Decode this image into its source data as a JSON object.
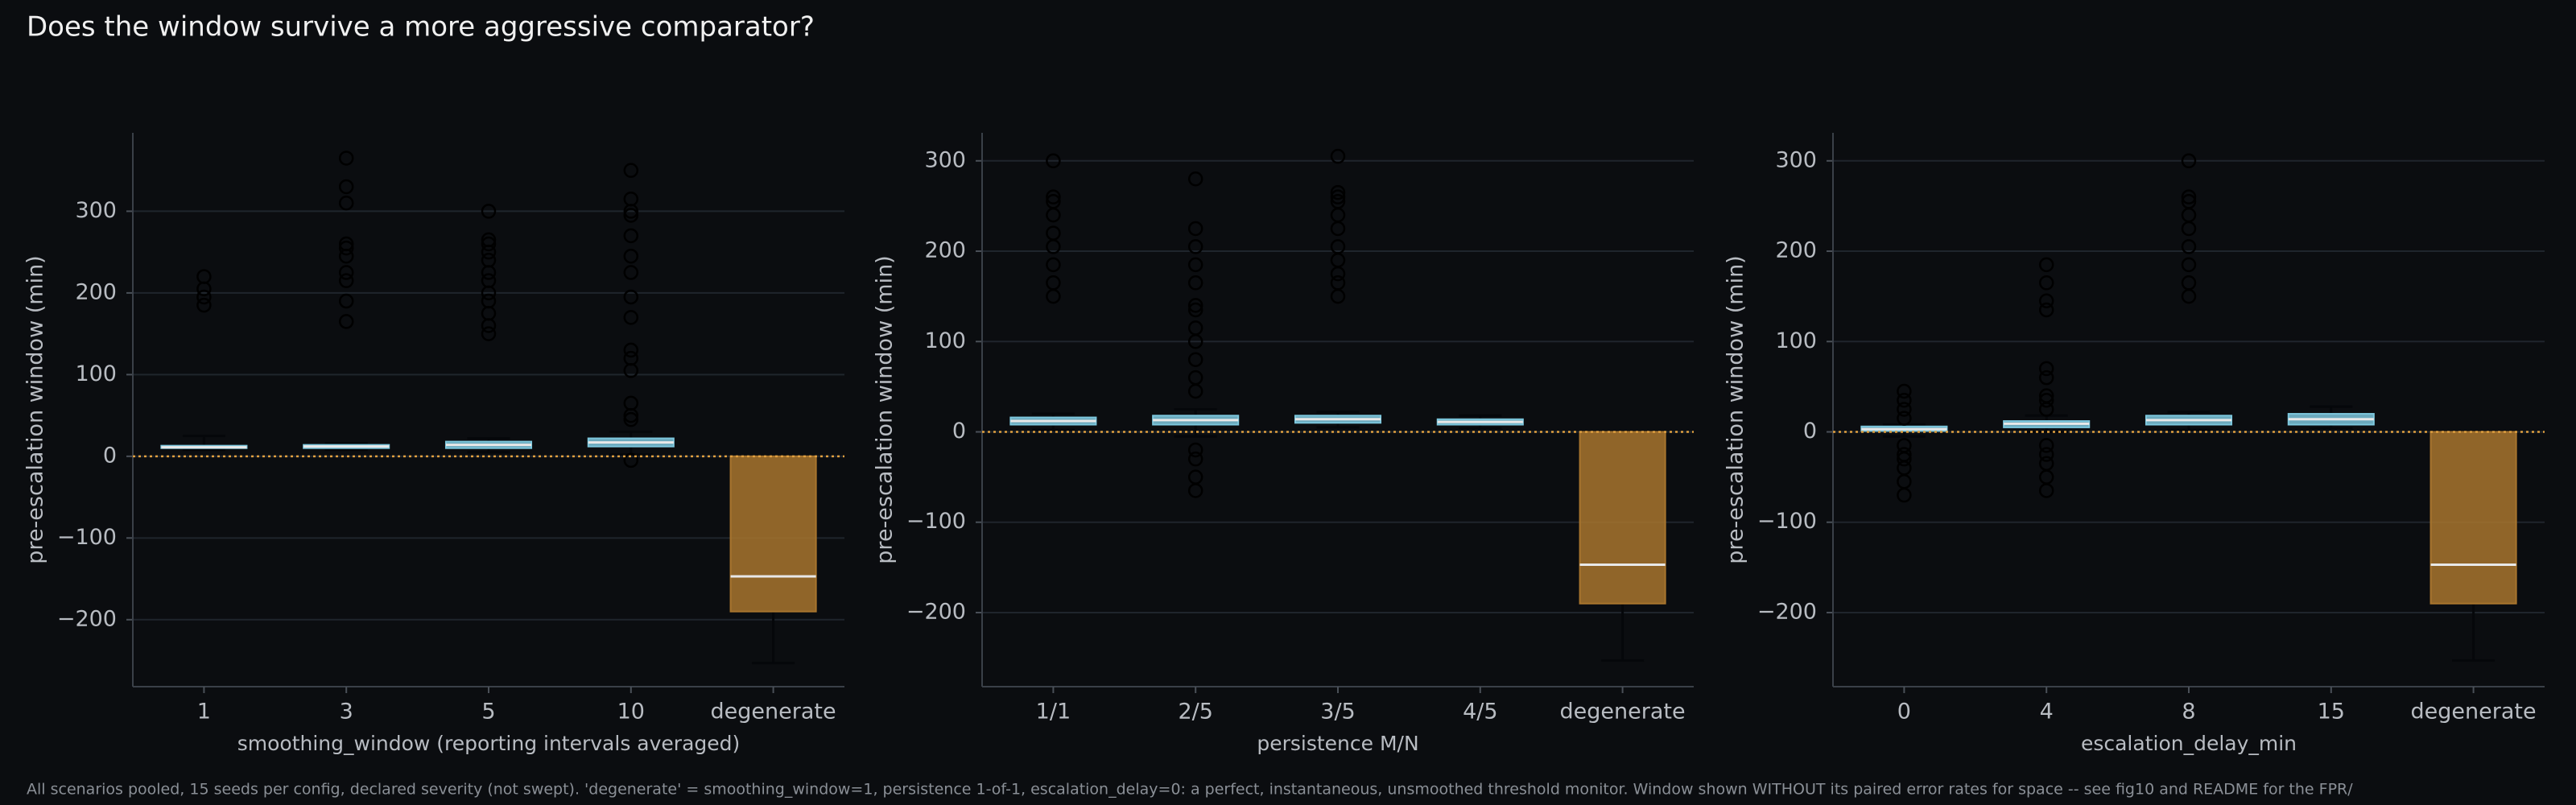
{
  "title": "Does the window survive a more aggressive comparator?",
  "footnote": "All scenarios pooled, 15 seeds per config, declared severity (not swept). 'degenerate' = smoothing_window=1, persistence 1-of-1, escalation_delay=0: a perfect, instantaneous, unsmoothed threshold monitor. Window shown WITHOUT its paired error rates for space -- see fig10 and README for the FPR/",
  "chart_data": [
    {
      "type": "box",
      "xlabel": "smoothing_window (reporting intervals averaged)",
      "ylabel": "pre-escalation window (min)",
      "categories": [
        "1",
        "3",
        "5",
        "10",
        "degenerate"
      ],
      "box_colors": [
        "#7cc6dc",
        "#7cc6dc",
        "#7cc6dc",
        "#7cc6dc",
        "#a8752e"
      ],
      "median_color": "#e8e8e8",
      "reference_line": 0,
      "reference_color": "#e0a040",
      "ylim": [
        -282,
        396
      ],
      "yticks": [
        {
          "value": -200,
          "label": "−200"
        },
        {
          "value": -100,
          "label": "−100"
        },
        0,
        100,
        200,
        300
      ],
      "grid": true,
      "boxes": [
        {
          "q1": 10,
          "median": 11,
          "q3": 13,
          "whislo": 8,
          "whishi": 25,
          "fliers": [
            185,
            195,
            205,
            220
          ]
        },
        {
          "q1": 10,
          "median": 12,
          "q3": 14,
          "whislo": 8,
          "whishi": 16,
          "fliers": [
            165,
            190,
            215,
            225,
            245,
            255,
            260,
            310,
            330,
            365
          ]
        },
        {
          "q1": 10,
          "median": 14,
          "q3": 18,
          "whislo": 5,
          "whishi": 22,
          "fliers": [
            150,
            160,
            175,
            190,
            200,
            215,
            225,
            240,
            250,
            260,
            265,
            300
          ]
        },
        {
          "q1": 12,
          "median": 17,
          "q3": 22,
          "whislo": 2,
          "whishi": 30,
          "fliers": [
            -5,
            45,
            50,
            65,
            105,
            120,
            130,
            170,
            195,
            225,
            245,
            270,
            295,
            300,
            315,
            350
          ]
        },
        {
          "q1": -190,
          "median": -147,
          "q3": 0,
          "whislo": -253,
          "whishi": 0,
          "fliers": []
        }
      ]
    },
    {
      "type": "box",
      "xlabel": "persistence M/N",
      "ylabel": "pre-escalation window (min)",
      "categories": [
        "1/1",
        "2/5",
        "3/5",
        "4/5",
        "degenerate"
      ],
      "box_colors": [
        "#7cc6dc",
        "#7cc6dc",
        "#7cc6dc",
        "#7cc6dc",
        "#a8752e"
      ],
      "median_color": "#e8e8e8",
      "reference_line": 0,
      "reference_color": "#e0a040",
      "ylim": [
        -282,
        331
      ],
      "yticks": [
        {
          "value": -200,
          "label": "−200"
        },
        {
          "value": -100,
          "label": "−100"
        },
        0,
        100,
        200,
        300
      ],
      "grid": true,
      "boxes": [
        {
          "q1": 8,
          "median": 12,
          "q3": 16,
          "whislo": 2,
          "whishi": 20,
          "fliers": [
            150,
            165,
            185,
            205,
            220,
            240,
            255,
            260,
            300
          ]
        },
        {
          "q1": 8,
          "median": 13,
          "q3": 18,
          "whislo": -5,
          "whishi": 25,
          "fliers": [
            -65,
            -50,
            -30,
            -20,
            45,
            60,
            80,
            100,
            115,
            135,
            140,
            165,
            185,
            205,
            225,
            280
          ]
        },
        {
          "q1": 10,
          "median": 14,
          "q3": 18,
          "whislo": 5,
          "whishi": 22,
          "fliers": [
            150,
            165,
            175,
            190,
            205,
            225,
            240,
            255,
            260,
            265,
            305
          ]
        },
        {
          "q1": 8,
          "median": 11,
          "q3": 14,
          "whislo": 4,
          "whishi": 18,
          "fliers": []
        },
        {
          "q1": -190,
          "median": -147,
          "q3": 0,
          "whislo": -253,
          "whishi": 0,
          "fliers": []
        }
      ]
    },
    {
      "type": "box",
      "xlabel": "escalation_delay_min",
      "ylabel": "pre-escalation window (min)",
      "categories": [
        "0",
        "4",
        "8",
        "15",
        "degenerate"
      ],
      "box_colors": [
        "#7cc6dc",
        "#7cc6dc",
        "#7cc6dc",
        "#7cc6dc",
        "#a8752e"
      ],
      "median_color": "#e8e8e8",
      "reference_line": 0,
      "reference_color": "#e0a040",
      "ylim": [
        -282,
        331
      ],
      "yticks": [
        {
          "value": -200,
          "label": "−200"
        },
        {
          "value": -100,
          "label": "−100"
        },
        0,
        100,
        200,
        300
      ],
      "grid": true,
      "boxes": [
        {
          "q1": 1,
          "median": 3,
          "q3": 6,
          "whislo": -5,
          "whishi": 8,
          "fliers": [
            -70,
            -55,
            -40,
            -30,
            -25,
            -15,
            15,
            25,
            35,
            45
          ]
        },
        {
          "q1": 5,
          "median": 9,
          "q3": 12,
          "whislo": 0,
          "whishi": 18,
          "fliers": [
            -65,
            -50,
            -35,
            -25,
            -15,
            25,
            35,
            40,
            60,
            70,
            135,
            145,
            165,
            185
          ]
        },
        {
          "q1": 8,
          "median": 13,
          "q3": 18,
          "whislo": 2,
          "whishi": 22,
          "fliers": [
            150,
            165,
            185,
            205,
            225,
            240,
            255,
            260,
            300
          ]
        },
        {
          "q1": 8,
          "median": 14,
          "q3": 20,
          "whislo": 4,
          "whishi": 28,
          "fliers": []
        },
        {
          "q1": -190,
          "median": -147,
          "q3": 0,
          "whislo": -253,
          "whishi": 0,
          "fliers": []
        }
      ]
    }
  ]
}
